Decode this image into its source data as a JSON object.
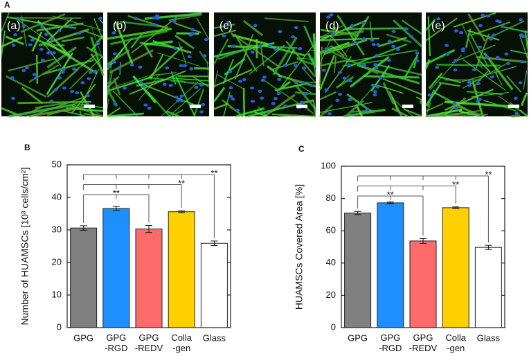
{
  "figure": {
    "panel_label": "A",
    "image_labels": [
      "(a)",
      "(b)",
      "(c)",
      "(d)",
      "(e)"
    ]
  },
  "chart_data": [
    {
      "type": "bar",
      "panel": "B",
      "ylabel": "Number of HUAMSCs [10³ cells/cm²]",
      "categories": [
        "GPG",
        "GPG\n-RGD",
        "GPG\n-REDV",
        "Colla\n-gen",
        "Glass"
      ],
      "values": [
        30.6,
        36.6,
        30.3,
        35.6,
        25.9
      ],
      "errors": [
        0.7,
        0.6,
        1.1,
        0.3,
        0.7
      ],
      "colors": [
        "#808080",
        "#1e8fff",
        "#ff6b6b",
        "#ffd000",
        "#ffffff"
      ],
      "ylim": [
        0,
        50
      ],
      "yticks": [
        0,
        10,
        20,
        30,
        40,
        50
      ],
      "annotations": [
        {
          "text": "**",
          "between": [
            0,
            4
          ]
        },
        {
          "text": "**",
          "between": [
            0,
            3
          ]
        },
        {
          "text": "**",
          "between": [
            0,
            2
          ]
        }
      ]
    },
    {
      "type": "bar",
      "panel": "C",
      "ylabel": "HUAMSCs Covered Area [%]",
      "categories": [
        "GPG",
        "GPG\n-RGD",
        "GPG\n-REDV",
        "Colla\n-gen",
        "Glass"
      ],
      "values": [
        71,
        77.3,
        53.7,
        74.3,
        49.7
      ],
      "errors": [
        1,
        0.5,
        1.5,
        0.5,
        1.3
      ],
      "colors": [
        "#808080",
        "#1e8fff",
        "#ff6b6b",
        "#ffd000",
        "#ffffff"
      ],
      "ylim": [
        0,
        100
      ],
      "yticks": [
        0,
        20,
        40,
        60,
        80,
        100
      ],
      "annotations": [
        {
          "text": "**",
          "between": [
            0,
            4
          ]
        },
        {
          "text": "**",
          "between": [
            0,
            3
          ]
        },
        {
          "text": "**",
          "between": [
            0,
            2
          ]
        }
      ]
    }
  ]
}
